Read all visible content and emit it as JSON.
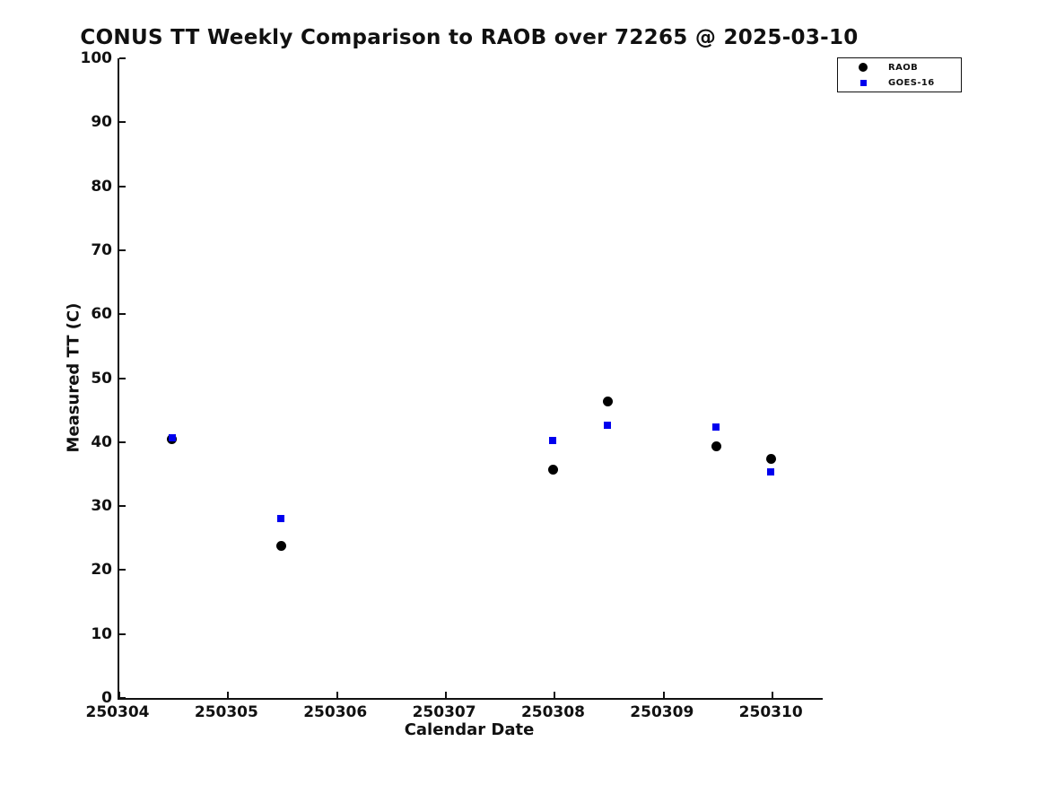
{
  "chart_data": {
    "type": "scatter",
    "title": "CONUS TT Weekly Comparison to RAOB over 72265 @ 2025-03-10",
    "xlabel": "Calendar Date",
    "ylabel": "Measured TT (C)",
    "xlim": [
      250304,
      250310.46
    ],
    "ylim": [
      0,
      100
    ],
    "xticks": [
      250304,
      250305,
      250306,
      250307,
      250308,
      250309,
      250310
    ],
    "yticks": [
      0,
      10,
      20,
      30,
      40,
      50,
      60,
      70,
      80,
      90,
      100
    ],
    "grid": false,
    "background_color": "#ffffff",
    "axis_color": "#111111",
    "legend": {
      "position": "top-right-outside",
      "items": [
        "RAOB",
        "GOES-16"
      ]
    },
    "series": [
      {
        "name": "RAOB",
        "marker": "circle",
        "color": "#000000",
        "marker_size": 11,
        "points": [
          [
            250304.5,
            40.4
          ],
          [
            250305.5,
            23.8
          ],
          [
            250308.0,
            35.7
          ],
          [
            250308.5,
            46.3
          ],
          [
            250309.5,
            39.3
          ],
          [
            250310.0,
            37.4
          ]
        ]
      },
      {
        "name": "GOES-16",
        "marker": "square",
        "color": "#0000ee",
        "marker_size": 8,
        "points": [
          [
            250304.5,
            40.7
          ],
          [
            250305.5,
            28.0
          ],
          [
            250308.0,
            40.3
          ],
          [
            250308.5,
            42.6
          ],
          [
            250309.5,
            42.3
          ],
          [
            250310.0,
            35.4
          ]
        ]
      }
    ]
  }
}
